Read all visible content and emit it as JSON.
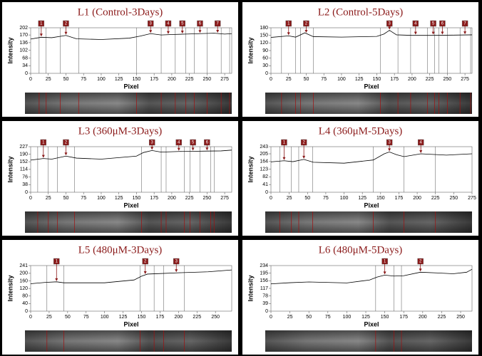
{
  "chart_data": [
    {
      "type": "line",
      "title": "L1 (Control-3Days)",
      "y_label": "Intensity",
      "x_label": "Pixel",
      "color": "#000000",
      "x": [
        0,
        15,
        30,
        50,
        65,
        100,
        140,
        155,
        170,
        185,
        200,
        220,
        240,
        260,
        275,
        285
      ],
      "values": [
        152,
        160,
        158,
        168,
        153,
        150,
        156,
        165,
        176,
        170,
        172,
        174,
        176,
        178,
        174,
        176
      ],
      "xlim": [
        0,
        285
      ],
      "ylim": [
        0,
        202
      ],
      "xticks": [
        0,
        25,
        50,
        75,
        100,
        125,
        150,
        175,
        200,
        225,
        250,
        275
      ],
      "yticks": [
        0,
        34,
        68,
        102,
        136,
        170,
        202
      ],
      "markers": {
        "labels": [
          "1",
          "2",
          "3",
          "4",
          "5",
          "6",
          "7"
        ],
        "x": [
          15,
          50,
          170,
          195,
          215,
          240,
          265
        ]
      },
      "vlines": [
        12,
        22,
        42,
        68,
        150,
        185,
        205,
        220,
        232,
        250,
        270,
        282
      ]
    },
    {
      "type": "line",
      "title": "L2 (Control-5Days)",
      "y_label": "Intensity",
      "x_label": "Pixel",
      "color": "#000000",
      "x": [
        0,
        25,
        35,
        48,
        60,
        100,
        150,
        160,
        168,
        178,
        200,
        230,
        260,
        285
      ],
      "values": [
        142,
        148,
        143,
        160,
        145,
        143,
        146,
        155,
        170,
        152,
        150,
        150,
        151,
        152
      ],
      "xlim": [
        0,
        285
      ],
      "ylim": [
        0,
        180
      ],
      "xticks": [
        0,
        25,
        50,
        75,
        100,
        125,
        150,
        175,
        200,
        225,
        250,
        275
      ],
      "yticks": [
        0,
        30,
        60,
        90,
        120,
        150,
        180
      ],
      "markers": {
        "labels": [
          "1",
          "2",
          "3",
          "4",
          "5",
          "6",
          "7"
        ],
        "x": [
          25,
          50,
          168,
          205,
          230,
          243,
          275
        ]
      },
      "vlines": [
        15,
        35,
        42,
        60,
        155,
        180,
        198,
        222,
        232,
        238,
        250,
        268,
        283
      ]
    },
    {
      "type": "line",
      "title": "L3 (360μM-3Days)",
      "y_label": "Intensity",
      "x_label": "Pixel",
      "color": "#000000",
      "x": [
        0,
        18,
        30,
        50,
        65,
        100,
        150,
        160,
        172,
        185,
        210,
        230,
        250,
        270,
        285
      ],
      "values": [
        160,
        168,
        165,
        180,
        170,
        165,
        180,
        198,
        208,
        200,
        203,
        204,
        205,
        206,
        210
      ],
      "xlim": [
        0,
        285
      ],
      "ylim": [
        0,
        227
      ],
      "xticks": [
        0,
        25,
        50,
        75,
        100,
        125,
        150,
        175,
        200,
        225,
        250,
        275
      ],
      "yticks": [
        0,
        38,
        76,
        114,
        152,
        190,
        227
      ],
      "markers": {
        "labels": [
          "1",
          "2",
          "3",
          "4",
          "5",
          "6"
        ],
        "x": [
          18,
          50,
          172,
          210,
          230,
          250
        ]
      },
      "vlines": [
        10,
        25,
        38,
        62,
        157,
        185,
        192,
        218,
        226,
        240,
        255,
        260
      ]
    },
    {
      "type": "line",
      "title": "L4 (360μM-5Days)",
      "y_label": "Intensity",
      "x_label": "Pixel",
      "color": "#000000",
      "x": [
        0,
        18,
        30,
        45,
        58,
        100,
        140,
        155,
        162,
        172,
        182,
        205,
        240,
        275
      ],
      "values": [
        162,
        168,
        163,
        175,
        160,
        155,
        172,
        205,
        215,
        200,
        190,
        205,
        198,
        205
      ],
      "xlim": [
        0,
        275
      ],
      "ylim": [
        0,
        243
      ],
      "xticks": [
        0,
        25,
        50,
        75,
        100,
        125,
        150,
        175,
        200,
        225,
        250,
        275
      ],
      "yticks": [
        0,
        41,
        82,
        123,
        164,
        205,
        243
      ],
      "markers": {
        "labels": [
          "1",
          "2",
          "3",
          "4"
        ],
        "x": [
          18,
          45,
          162,
          205
        ]
      },
      "vlines": [
        12,
        28,
        38,
        57,
        140,
        182,
        225
      ]
    },
    {
      "type": "line",
      "title": "L5 (480μM-3Days)",
      "y_label": "Intensity",
      "x_label": "Pixel",
      "color": "#000000",
      "x": [
        0,
        20,
        35,
        45,
        100,
        140,
        150,
        158,
        170,
        200,
        240,
        272
      ],
      "values": [
        145,
        152,
        155,
        150,
        150,
        165,
        185,
        196,
        198,
        203,
        208,
        218
      ],
      "xlim": [
        0,
        272
      ],
      "ylim": [
        0,
        241
      ],
      "xticks": [
        0,
        25,
        50,
        75,
        100,
        125,
        150,
        175,
        200,
        225,
        250
      ],
      "yticks": [
        0,
        40,
        80,
        120,
        160,
        200,
        241
      ],
      "markers": {
        "labels": [
          "1",
          "2",
          "3"
        ],
        "x": [
          35,
          155,
          197
        ]
      },
      "vlines": [
        22,
        45,
        148,
        167,
        180,
        208
      ]
    },
    {
      "type": "line",
      "title": "L6 (480μM-5Days)",
      "y_label": "Intensity",
      "x_label": "Pixel",
      "color": "#000000",
      "x": [
        0,
        25,
        50,
        100,
        130,
        140,
        150,
        162,
        175,
        197,
        220,
        240,
        258,
        265
      ],
      "values": [
        140,
        146,
        150,
        145,
        160,
        175,
        185,
        180,
        182,
        200,
        196,
        192,
        200,
        215
      ],
      "xlim": [
        0,
        265
      ],
      "ylim": [
        0,
        234
      ],
      "xticks": [
        0,
        25,
        50,
        75,
        100,
        125,
        150,
        175,
        200,
        225,
        250
      ],
      "yticks": [
        0,
        39,
        78,
        117,
        156,
        195,
        234
      ],
      "markers": {
        "labels": [
          "1",
          "2"
        ],
        "x": [
          150,
          197
        ]
      },
      "vlines": [
        138,
        162,
        172
      ]
    }
  ]
}
